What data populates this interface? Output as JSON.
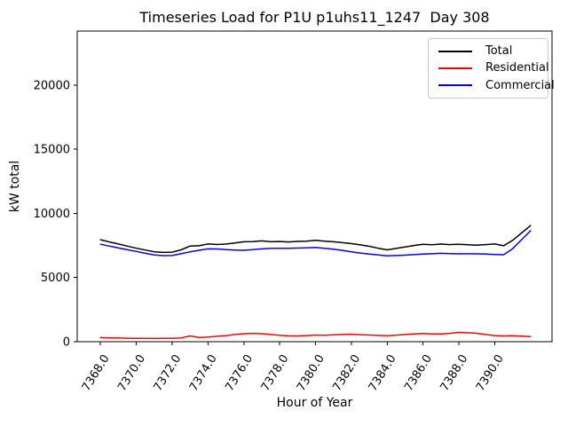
{
  "chart_data": {
    "type": "line",
    "title": "Timeseries Load for P1U p1uhs11_1247  Day 308",
    "xlabel": "Hour of Year",
    "ylabel": "kW total",
    "grid": false,
    "legend_position": "upper right",
    "xlim": [
      7366.7,
      7393.2
    ],
    "ylim": [
      0,
      24220
    ],
    "x_ticks": {
      "rotation": 58,
      "values": [
        7368,
        7370,
        7372,
        7374,
        7376,
        7378,
        7380,
        7382,
        7384,
        7386,
        7388,
        7390
      ],
      "labels": [
        "7368.0",
        "7370.0",
        "7372.0",
        "7374.0",
        "7376.0",
        "7378.0",
        "7380.0",
        "7382.0",
        "7384.0",
        "7386.0",
        "7388.0",
        "7390.0"
      ]
    },
    "y_ticks": {
      "values": [
        0,
        5000,
        10000,
        15000,
        20000
      ],
      "labels": [
        "0",
        "5000",
        "10000",
        "15000",
        "20000"
      ]
    },
    "x": [
      7368.0,
      7368.5,
      7369.0,
      7369.5,
      7370.0,
      7370.5,
      7371.0,
      7371.5,
      7372.0,
      7372.5,
      7373.0,
      7373.5,
      7374.0,
      7374.5,
      7375.0,
      7375.5,
      7376.0,
      7376.5,
      7377.0,
      7377.5,
      7378.0,
      7378.5,
      7379.0,
      7379.5,
      7380.0,
      7380.5,
      7381.0,
      7381.5,
      7382.0,
      7382.5,
      7383.0,
      7383.5,
      7384.0,
      7384.5,
      7385.0,
      7385.5,
      7386.0,
      7386.5,
      7387.0,
      7387.5,
      7388.0,
      7388.5,
      7389.0,
      7389.5,
      7390.0,
      7390.5,
      7391.0,
      7391.5,
      7392.0
    ],
    "series": [
      {
        "name": "Total",
        "color": "#000000",
        "values": [
          7950,
          7780,
          7620,
          7450,
          7290,
          7150,
          7010,
          6960,
          6980,
          7160,
          7460,
          7480,
          7620,
          7580,
          7610,
          7700,
          7790,
          7800,
          7860,
          7790,
          7810,
          7780,
          7820,
          7840,
          7900,
          7830,
          7790,
          7720,
          7650,
          7550,
          7440,
          7290,
          7160,
          7270,
          7390,
          7500,
          7590,
          7560,
          7610,
          7570,
          7600,
          7560,
          7520,
          7570,
          7620,
          7480,
          7900,
          8480,
          9050
        ]
      },
      {
        "name": "Residential",
        "color": "#ff0000",
        "values": [
          320,
          300,
          285,
          270,
          260,
          255,
          250,
          255,
          265,
          300,
          450,
          330,
          360,
          420,
          480,
          560,
          620,
          650,
          620,
          560,
          500,
          460,
          450,
          480,
          520,
          500,
          540,
          560,
          580,
          550,
          520,
          490,
          470,
          510,
          560,
          600,
          640,
          610,
          600,
          650,
          730,
          690,
          660,
          560,
          480,
          450,
          470,
          430,
          395
        ]
      },
      {
        "name": "Commercial",
        "color": "#0000ff",
        "values": [
          7600,
          7450,
          7310,
          7170,
          7040,
          6890,
          6770,
          6710,
          6720,
          6860,
          7010,
          7130,
          7240,
          7230,
          7180,
          7150,
          7130,
          7180,
          7240,
          7270,
          7290,
          7280,
          7300,
          7320,
          7340,
          7280,
          7220,
          7120,
          7010,
          6910,
          6830,
          6760,
          6700,
          6720,
          6750,
          6790,
          6830,
          6860,
          6890,
          6870,
          6850,
          6860,
          6850,
          6830,
          6800,
          6780,
          7250,
          7950,
          8650
        ]
      }
    ]
  }
}
